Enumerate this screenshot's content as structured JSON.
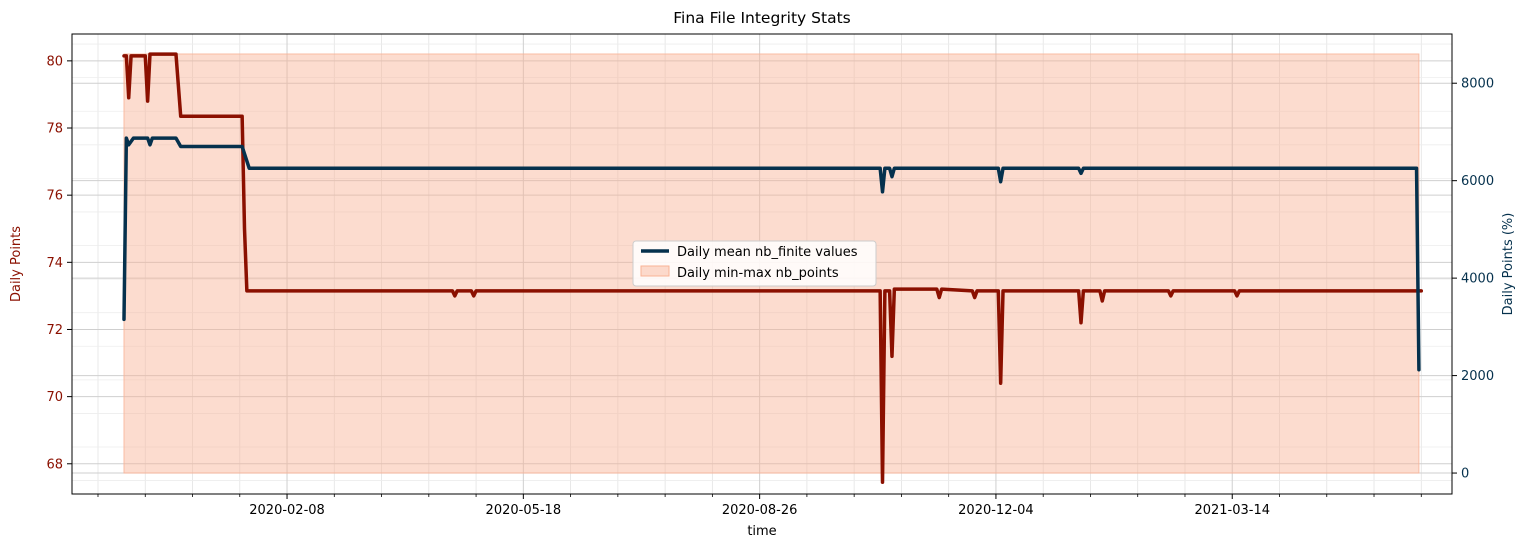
{
  "chart_data": {
    "type": "line",
    "title": "Fina File Integrity Stats",
    "xlabel": "time",
    "ylabel_left": "Daily Points",
    "ylabel_right": "Daily Points (%)",
    "x_tick_labels": [
      "2020-02-08",
      "2020-05-18",
      "2020-08-26",
      "2020-12-04",
      "2021-03-14"
    ],
    "x_tick_dates": [
      "2020-02-08",
      "2020-05-18",
      "2020-08-26",
      "2020-12-04",
      "2021-03-14"
    ],
    "xlim": [
      "2019-11-09",
      "2021-06-15"
    ],
    "left_axis": {
      "ylim": [
        67.1,
        80.8
      ],
      "ticks": [
        68,
        70,
        72,
        74,
        76,
        78,
        80
      ]
    },
    "right_axis": {
      "ylim": [
        -430,
        9010
      ],
      "ticks": [
        0,
        2000,
        4000,
        6000,
        8000
      ]
    },
    "grid": true,
    "legend_position": "center",
    "colors": {
      "mean_line": "#05314d",
      "points_line": "#8b1000",
      "fill": "#f9b295",
      "left_tick": "#8b1000",
      "right_tick": "#05314d"
    },
    "series": [
      {
        "name": "Daily mean nb_finite values",
        "axis": "left",
        "points": [
          [
            "2019-12-01",
            72.3
          ],
          [
            "2019-12-02",
            77.7
          ],
          [
            "2019-12-03",
            77.5
          ],
          [
            "2019-12-05",
            77.7
          ],
          [
            "2019-12-11",
            77.7
          ],
          [
            "2019-12-12",
            77.5
          ],
          [
            "2019-12-13",
            77.7
          ],
          [
            "2019-12-23",
            77.7
          ],
          [
            "2019-12-25",
            77.45
          ],
          [
            "2020-01-20",
            77.45
          ],
          [
            "2020-01-23",
            76.8
          ],
          [
            "2020-10-16",
            76.8
          ],
          [
            "2020-10-17",
            76.1
          ],
          [
            "2020-10-18",
            76.8
          ],
          [
            "2020-10-20",
            76.8
          ],
          [
            "2020-10-21",
            76.55
          ],
          [
            "2020-10-22",
            76.8
          ],
          [
            "2020-12-05",
            76.8
          ],
          [
            "2020-12-06",
            76.4
          ],
          [
            "2020-12-07",
            76.8
          ],
          [
            "2021-01-08",
            76.8
          ],
          [
            "2021-01-09",
            76.65
          ],
          [
            "2021-01-10",
            76.8
          ],
          [
            "2021-05-31",
            76.8
          ],
          [
            "2021-06-01",
            70.8
          ]
        ]
      },
      {
        "name": "Daily Points",
        "axis": "left",
        "points": [
          [
            "2019-12-01",
            80.15
          ],
          [
            "2019-12-02",
            80.15
          ],
          [
            "2019-12-03",
            78.9
          ],
          [
            "2019-12-04",
            80.15
          ],
          [
            "2019-12-10",
            80.15
          ],
          [
            "2019-12-11",
            78.8
          ],
          [
            "2019-12-12",
            80.2
          ],
          [
            "2019-12-23",
            80.2
          ],
          [
            "2019-12-25",
            78.35
          ],
          [
            "2020-01-20",
            78.35
          ],
          [
            "2020-01-21",
            75.0
          ],
          [
            "2020-01-22",
            73.15
          ],
          [
            "2020-04-18",
            73.15
          ],
          [
            "2020-04-19",
            73.0
          ],
          [
            "2020-04-20",
            73.15
          ],
          [
            "2020-04-26",
            73.15
          ],
          [
            "2020-04-27",
            73.0
          ],
          [
            "2020-04-28",
            73.15
          ],
          [
            "2020-10-16",
            73.15
          ],
          [
            "2020-10-17",
            67.45
          ],
          [
            "2020-10-18",
            73.15
          ],
          [
            "2020-10-20",
            73.15
          ],
          [
            "2020-10-21",
            71.2
          ],
          [
            "2020-10-22",
            73.2
          ],
          [
            "2020-11-09",
            73.2
          ],
          [
            "2020-11-10",
            72.95
          ],
          [
            "2020-11-11",
            73.2
          ],
          [
            "2020-11-24",
            73.15
          ],
          [
            "2020-11-25",
            72.95
          ],
          [
            "2020-11-26",
            73.15
          ],
          [
            "2020-12-05",
            73.15
          ],
          [
            "2020-12-06",
            70.4
          ],
          [
            "2020-12-07",
            73.15
          ],
          [
            "2021-01-08",
            73.15
          ],
          [
            "2021-01-09",
            72.2
          ],
          [
            "2021-01-10",
            73.15
          ],
          [
            "2021-01-17",
            73.15
          ],
          [
            "2021-01-18",
            72.85
          ],
          [
            "2021-01-19",
            73.15
          ],
          [
            "2021-02-15",
            73.15
          ],
          [
            "2021-02-16",
            73.0
          ],
          [
            "2021-02-17",
            73.15
          ],
          [
            "2021-03-15",
            73.15
          ],
          [
            "2021-03-16",
            73.0
          ],
          [
            "2021-03-17",
            73.15
          ],
          [
            "2021-06-02",
            73.15
          ]
        ]
      }
    ],
    "fill_series": {
      "name": "Daily min-max nb_points",
      "axis": "right",
      "x_range": [
        "2019-12-01",
        "2021-06-01"
      ],
      "y_range": [
        0,
        8600
      ]
    },
    "legend_entries": [
      "Daily mean nb_finite values",
      "Daily min-max nb_points"
    ]
  }
}
